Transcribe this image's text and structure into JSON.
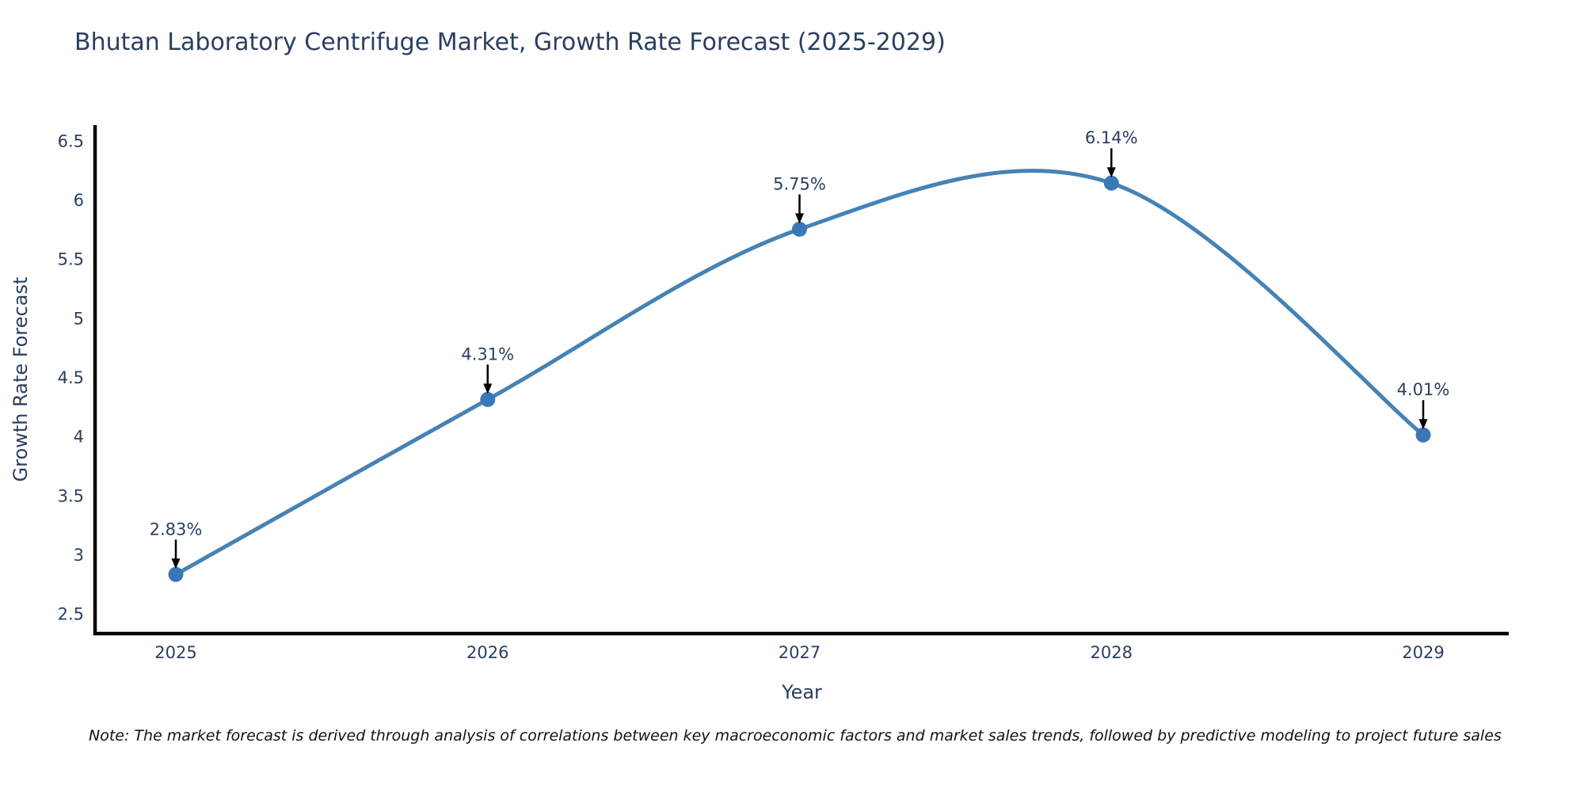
{
  "page": {
    "note": "Note: The market forecast is derived through analysis of correlations between key macroeconomic factors and market sales trends, followed by predictive modeling to project future sales"
  },
  "chart_data": {
    "type": "line",
    "line_shape": "spline",
    "title": "Bhutan Laboratory Centrifuge Market, Growth Rate Forecast (2025-2029)",
    "xlabel": "Year",
    "ylabel": "Growth Rate Forecast",
    "categories": [
      "2025",
      "2026",
      "2027",
      "2028",
      "2029"
    ],
    "values": [
      2.83,
      4.31,
      5.75,
      6.14,
      4.01
    ],
    "point_labels": [
      "2.83%",
      "4.31%",
      "5.75%",
      "6.14%",
      "4.01%"
    ],
    "yticks": [
      2.5,
      3,
      3.5,
      4,
      4.5,
      5,
      5.5,
      6,
      6.5
    ],
    "ylim": [
      2.33,
      6.63
    ],
    "grid": false,
    "legend": false,
    "annotations_have_arrows": true,
    "colors": {
      "line": "#4682b4",
      "marker": "#3a78b5",
      "axis": "#000000",
      "tick_text": "#2a3f5f",
      "annotation_text": "#2a3f5f",
      "arrow": "#000000",
      "title_text": "#2a3f5f",
      "note_text": "#111111",
      "background": "#ffffff"
    }
  }
}
